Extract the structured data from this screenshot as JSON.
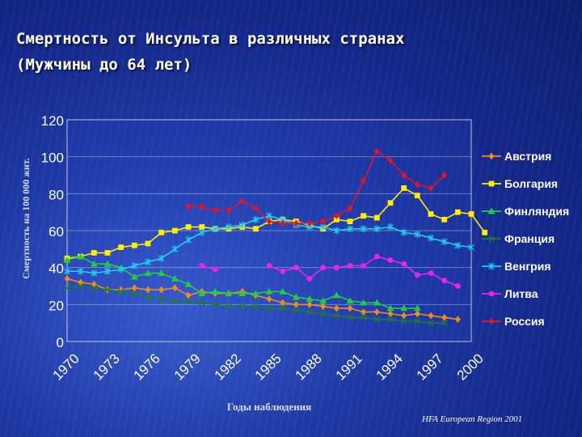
{
  "header": {
    "title_line1": "Смертность от Инсульта в различных странах",
    "title_line2": "(Мужчины  до 64 лет)"
  },
  "footer": {
    "note": "HFA European Region 2001"
  },
  "chart_data": {
    "type": "line",
    "xlabel": "Годы наблюдения",
    "ylabel": "Смертность на 100 000 жит.",
    "xlim": [
      1970,
      2000
    ],
    "ylim": [
      0,
      120
    ],
    "yticks": [
      0,
      20,
      40,
      60,
      80,
      100,
      120
    ],
    "xticks": [
      1970,
      1973,
      1976,
      1979,
      1982,
      1985,
      1988,
      1991,
      1994,
      1997,
      2000
    ],
    "grid": true,
    "legend": "right",
    "series": [
      {
        "name": "Австрия",
        "color": "#f08c1a",
        "marker": "diamond",
        "points": [
          [
            1970,
            34
          ],
          [
            1971,
            32
          ],
          [
            1972,
            31
          ],
          [
            1973,
            28
          ],
          [
            1974,
            28
          ],
          [
            1975,
            29
          ],
          [
            1976,
            28
          ],
          [
            1977,
            28
          ],
          [
            1978,
            29
          ],
          [
            1979,
            25
          ],
          [
            1980,
            27
          ],
          [
            1981,
            26
          ],
          [
            1982,
            26
          ],
          [
            1983,
            27
          ],
          [
            1984,
            25
          ],
          [
            1985,
            23
          ],
          [
            1986,
            21
          ],
          [
            1987,
            20
          ],
          [
            1988,
            20
          ],
          [
            1989,
            19
          ],
          [
            1990,
            18
          ],
          [
            1991,
            18
          ],
          [
            1992,
            16
          ],
          [
            1993,
            16
          ],
          [
            1994,
            15
          ],
          [
            1995,
            14
          ],
          [
            1996,
            15
          ],
          [
            1997,
            14
          ],
          [
            1998,
            13
          ],
          [
            1999,
            12
          ]
        ]
      },
      {
        "name": "Болгария",
        "color": "#ffee00",
        "marker": "square",
        "points": [
          [
            1970,
            45
          ],
          [
            1971,
            46
          ],
          [
            1972,
            48
          ],
          [
            1973,
            48
          ],
          [
            1974,
            51
          ],
          [
            1975,
            52
          ],
          [
            1976,
            53
          ],
          [
            1977,
            59
          ],
          [
            1978,
            60
          ],
          [
            1979,
            62
          ],
          [
            1980,
            62
          ],
          [
            1981,
            61
          ],
          [
            1982,
            61
          ],
          [
            1983,
            62
          ],
          [
            1984,
            61
          ],
          [
            1985,
            65
          ],
          [
            1986,
            66
          ],
          [
            1987,
            65
          ],
          [
            1988,
            63
          ],
          [
            1989,
            61
          ],
          [
            1990,
            66
          ],
          [
            1991,
            65
          ],
          [
            1992,
            68
          ],
          [
            1993,
            67
          ],
          [
            1994,
            75
          ],
          [
            1995,
            83
          ],
          [
            1996,
            79
          ],
          [
            1997,
            69
          ],
          [
            1998,
            66
          ],
          [
            1999,
            70
          ],
          [
            2000,
            69
          ],
          [
            2001,
            59
          ]
        ]
      },
      {
        "name": "Финляндия",
        "color": "#22cc44",
        "marker": "triangle",
        "points": [
          [
            1970,
            44
          ],
          [
            1971,
            46
          ],
          [
            1972,
            42
          ],
          [
            1973,
            42
          ],
          [
            1974,
            40
          ],
          [
            1975,
            35
          ],
          [
            1976,
            37
          ],
          [
            1977,
            37
          ],
          [
            1978,
            34
          ],
          [
            1979,
            31
          ],
          [
            1980,
            26
          ],
          [
            1981,
            27
          ],
          [
            1982,
            26
          ],
          [
            1983,
            26
          ],
          [
            1984,
            26
          ],
          [
            1985,
            27
          ],
          [
            1986,
            27
          ],
          [
            1987,
            24
          ],
          [
            1988,
            23
          ],
          [
            1989,
            22
          ],
          [
            1990,
            25
          ],
          [
            1991,
            22
          ],
          [
            1992,
            21
          ],
          [
            1993,
            21
          ],
          [
            1994,
            18
          ],
          [
            1995,
            18
          ],
          [
            1996,
            18
          ]
        ]
      },
      {
        "name": "Франция",
        "color": "#1e7a3a",
        "marker": "x",
        "points": [
          [
            1970,
            29
          ],
          [
            1971,
            30
          ],
          [
            1972,
            29
          ],
          [
            1973,
            28
          ],
          [
            1974,
            27
          ],
          [
            1975,
            26
          ],
          [
            1976,
            24
          ],
          [
            1977,
            23
          ],
          [
            1978,
            22
          ],
          [
            1979,
            22
          ],
          [
            1980,
            21
          ],
          [
            1981,
            20
          ],
          [
            1982,
            19
          ],
          [
            1983,
            19
          ],
          [
            1984,
            19
          ],
          [
            1985,
            18
          ],
          [
            1986,
            18
          ],
          [
            1987,
            17
          ],
          [
            1988,
            16
          ],
          [
            1989,
            15
          ],
          [
            1990,
            14
          ],
          [
            1991,
            13
          ],
          [
            1992,
            13
          ],
          [
            1993,
            12
          ],
          [
            1994,
            12
          ],
          [
            1995,
            11
          ],
          [
            1996,
            11
          ],
          [
            1997,
            10
          ],
          [
            1998,
            10
          ]
        ]
      },
      {
        "name": "Венгрия",
        "color": "#22ccf0",
        "marker": "star",
        "points": [
          [
            1970,
            38
          ],
          [
            1971,
            38
          ],
          [
            1972,
            37
          ],
          [
            1973,
            38
          ],
          [
            1974,
            39
          ],
          [
            1975,
            41
          ],
          [
            1976,
            43
          ],
          [
            1977,
            45
          ],
          [
            1978,
            50
          ],
          [
            1979,
            55
          ],
          [
            1980,
            59
          ],
          [
            1981,
            61
          ],
          [
            1982,
            62
          ],
          [
            1983,
            63
          ],
          [
            1984,
            66
          ],
          [
            1985,
            68
          ],
          [
            1986,
            66
          ],
          [
            1987,
            63
          ],
          [
            1988,
            62
          ],
          [
            1989,
            62
          ],
          [
            1990,
            60
          ],
          [
            1991,
            61
          ],
          [
            1992,
            61
          ],
          [
            1993,
            61
          ],
          [
            1994,
            62
          ],
          [
            1995,
            59
          ],
          [
            1996,
            58
          ],
          [
            1997,
            56
          ],
          [
            1998,
            54
          ],
          [
            1999,
            52
          ],
          [
            2000,
            51
          ]
        ]
      },
      {
        "name": "Литва",
        "color": "#ee22ee",
        "marker": "circle",
        "points": [
          [
            1980,
            41
          ],
          [
            1981,
            39
          ],
          [
            1985,
            41
          ],
          [
            1986,
            38
          ],
          [
            1987,
            40
          ],
          [
            1988,
            34
          ],
          [
            1989,
            40
          ],
          [
            1990,
            40
          ],
          [
            1991,
            41
          ],
          [
            1992,
            41
          ],
          [
            1993,
            46
          ],
          [
            1994,
            44
          ],
          [
            1995,
            42
          ],
          [
            1996,
            36
          ],
          [
            1997,
            37
          ],
          [
            1998,
            33
          ],
          [
            1999,
            30
          ]
        ]
      },
      {
        "name": "Россия",
        "color": "#dd1530",
        "marker": "diamond",
        "points": [
          [
            1979,
            73
          ],
          [
            1980,
            73
          ],
          [
            1981,
            71
          ],
          [
            1982,
            71
          ],
          [
            1983,
            76
          ],
          [
            1984,
            72
          ],
          [
            1985,
            65
          ],
          [
            1986,
            64
          ],
          [
            1987,
            64
          ],
          [
            1988,
            64
          ],
          [
            1989,
            65
          ],
          [
            1990,
            68
          ],
          [
            1991,
            72
          ],
          [
            1992,
            87
          ],
          [
            1993,
            103
          ],
          [
            1994,
            98
          ],
          [
            1995,
            90
          ],
          [
            1996,
            85
          ],
          [
            1997,
            83
          ],
          [
            1998,
            90
          ]
        ]
      }
    ]
  }
}
